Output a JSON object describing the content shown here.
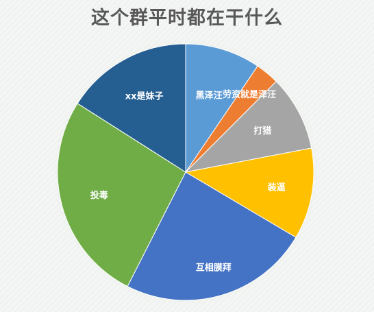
{
  "chart_data": {
    "type": "pie",
    "title": "这个群平时都在干什么",
    "start_angle_deg": 0,
    "direction": "clockwise",
    "slices": [
      {
        "label": "黑泽汪",
        "value": 9.5,
        "color": "#5b9bd5"
      },
      {
        "label": "劳资就是泽汪",
        "value": 3,
        "color": "#ed7d31"
      },
      {
        "label": "打猎",
        "value": 9.5,
        "color": "#a5a5a5"
      },
      {
        "label": "装逼",
        "value": 11.5,
        "color": "#ffc000"
      },
      {
        "label": "互相膜拜",
        "value": 24,
        "color": "#4472c4"
      },
      {
        "label": "投毒",
        "value": 26.5,
        "color": "#70ad47"
      },
      {
        "label": "xx是妹子",
        "value": 16,
        "color": "#255e91"
      }
    ]
  }
}
